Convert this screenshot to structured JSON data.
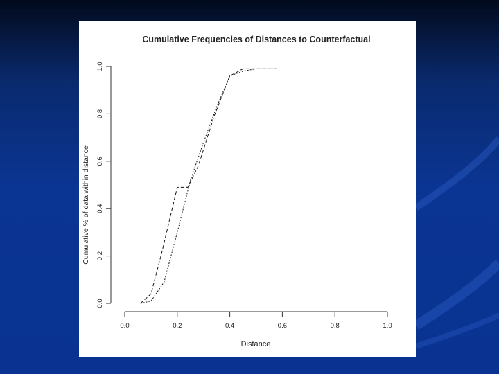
{
  "colors": {
    "background": "#0b3593",
    "panel": "#ffffff",
    "line": "#111111"
  },
  "chart_data": {
    "type": "line",
    "title": "Cumulative Frequencies of Distances to Counterfactual",
    "xlabel": "Distance",
    "ylabel": "Cumulative % of data within distance",
    "xlim": [
      0.0,
      1.0
    ],
    "ylim": [
      0.0,
      1.0
    ],
    "xticks": [
      "0.0",
      "0.2",
      "0.4",
      "0.6",
      "0.8",
      "1.0"
    ],
    "yticks": [
      "0.0",
      "0.2",
      "0.4",
      "0.6",
      "0.8",
      "1.0"
    ],
    "grid": false,
    "legend": "none",
    "series": [
      {
        "style": "dashed",
        "x": [
          0.06,
          0.1,
          0.14,
          0.2,
          0.24,
          0.28,
          0.34,
          0.4,
          0.45,
          0.5,
          0.58
        ],
        "y": [
          0.0,
          0.04,
          0.21,
          0.49,
          0.49,
          0.58,
          0.79,
          0.96,
          0.99,
          0.99,
          0.99
        ]
      },
      {
        "style": "dotted",
        "x": [
          0.06,
          0.1,
          0.15,
          0.2,
          0.25,
          0.3,
          0.35,
          0.4,
          0.45,
          0.5,
          0.58
        ],
        "y": [
          0.0,
          0.01,
          0.09,
          0.3,
          0.52,
          0.68,
          0.83,
          0.96,
          0.98,
          0.99,
          0.99
        ]
      }
    ]
  }
}
